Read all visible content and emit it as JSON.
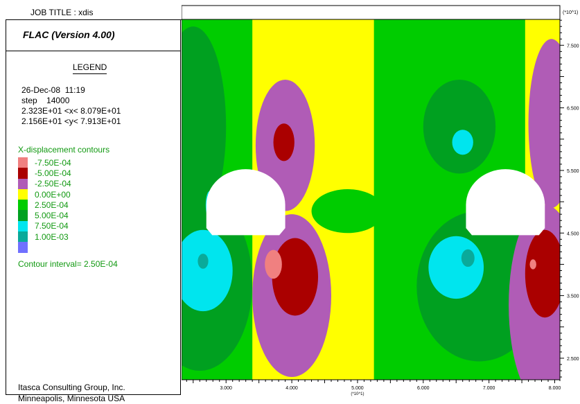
{
  "job_title": "JOB TITLE : xdis",
  "program_title": "FLAC (Version 4.00)",
  "legend_heading": "LEGEND",
  "date_line": "26-Dec-08  11:19",
  "step_line": "step    14000",
  "x_range_line": "2.323E+01 <x< 8.079E+01",
  "y_range_line": "2.156E+01 <y< 7.913E+01",
  "contour_title": "X-displacement contours",
  "contour_levels": [
    {
      "label": "-7.50E-04",
      "color": "#f08080"
    },
    {
      "label": "-5.00E-04",
      "color": "#aa0000"
    },
    {
      "label": "-2.50E-04",
      "color": "#b05cb6"
    },
    {
      "label": "0.00E+00",
      "color": "#ffff00"
    },
    {
      "label": "2.50E-04",
      "color": "#00cc00"
    },
    {
      "label": "5.00E-04",
      "color": "#00a020"
    },
    {
      "label": "7.50E-04",
      "color": "#00e5ee"
    },
    {
      "label": "1.00E-03",
      "color": "#0aaa9a"
    },
    {
      "label": "",
      "color": "#7070ff"
    }
  ],
  "contour_interval": "Contour interval=  2.50E-04",
  "company_line1": "Itasca Consulting Group, Inc.",
  "company_line2": "Minneapolis, Minnesota  USA",
  "chart_data": {
    "type": "heatmap",
    "title": "",
    "xlabel": "",
    "ylabel": "",
    "x_scale_label": "(*10^1)",
    "y_scale_label": "(*10^1)",
    "x_ticks": [
      {
        "value": 3.0,
        "label": "3.000"
      },
      {
        "value": 4.0,
        "label": "4.000"
      },
      {
        "value": 5.0,
        "label": "5.000"
      },
      {
        "value": 6.0,
        "label": "6.000"
      },
      {
        "value": 7.0,
        "label": "7.000"
      },
      {
        "value": 8.0,
        "label": "8.000"
      }
    ],
    "y_ticks": [
      {
        "value": 7.5,
        "label": "7.500"
      },
      {
        "value": 6.5,
        "label": "6.500"
      },
      {
        "value": 5.5,
        "label": "5.500"
      },
      {
        "value": 4.5,
        "label": "4.500"
      },
      {
        "value": 3.5,
        "label": "3.500"
      },
      {
        "value": 2.5,
        "label": "2.500"
      }
    ],
    "xlim": [
      2.323,
      8.079
    ],
    "ylim": [
      2.156,
      7.913
    ],
    "background_color": "#ffff00",
    "regions": [
      {
        "name": "left-green-band",
        "color": "#00cc00",
        "shape": "rect",
        "x": [
          2.323,
          3.4
        ],
        "y": [
          2.156,
          7.913
        ]
      },
      {
        "name": "right-green-band",
        "color": "#00cc00",
        "shape": "rect",
        "x": [
          5.25,
          7.55
        ],
        "y": [
          2.156,
          7.913
        ]
      },
      {
        "name": "center-green-lobe",
        "color": "#00cc00",
        "shape": "ellipse",
        "cx": 4.85,
        "cy": 4.85,
        "rx": 0.55,
        "ry": 0.35
      },
      {
        "name": "left-upper-darkgreen",
        "color": "#00a020",
        "shape": "ellipse",
        "cx": 2.5,
        "cy": 6.2,
        "rx": 0.5,
        "ry": 1.6
      },
      {
        "name": "left-lower-darkgreen",
        "color": "#00a020",
        "shape": "ellipse",
        "cx": 2.6,
        "cy": 3.7,
        "rx": 0.8,
        "ry": 1.4
      },
      {
        "name": "right-upper-darkgreen",
        "color": "#00a020",
        "shape": "ellipse",
        "cx": 6.55,
        "cy": 6.2,
        "rx": 0.55,
        "ry": 0.75
      },
      {
        "name": "right-lower-darkgreen",
        "color": "#00a020",
        "shape": "ellipse",
        "cx": 6.85,
        "cy": 3.65,
        "rx": 0.95,
        "ry": 1.2
      },
      {
        "name": "left-upper-purple",
        "color": "#b05cb6",
        "shape": "ellipse",
        "cx": 3.9,
        "cy": 5.9,
        "rx": 0.45,
        "ry": 1.05
      },
      {
        "name": "left-lower-purple",
        "color": "#b05cb6",
        "shape": "ellipse",
        "cx": 4.0,
        "cy": 3.5,
        "rx": 0.6,
        "ry": 1.3
      },
      {
        "name": "right-upper-purple",
        "color": "#b05cb6",
        "shape": "ellipse",
        "cx": 7.95,
        "cy": 6.25,
        "rx": 0.35,
        "ry": 1.35
      },
      {
        "name": "right-lower-purple",
        "color": "#b05cb6",
        "shape": "ellipse",
        "cx": 7.85,
        "cy": 3.35,
        "rx": 0.55,
        "ry": 1.6
      },
      {
        "name": "left-upper-red",
        "color": "#aa0000",
        "shape": "ellipse",
        "cx": 3.88,
        "cy": 5.95,
        "rx": 0.16,
        "ry": 0.3
      },
      {
        "name": "left-lower-red",
        "color": "#aa0000",
        "shape": "ellipse",
        "cx": 4.05,
        "cy": 3.8,
        "rx": 0.35,
        "ry": 0.62
      },
      {
        "name": "right-lower-red",
        "color": "#aa0000",
        "shape": "ellipse",
        "cx": 7.85,
        "cy": 3.85,
        "rx": 0.3,
        "ry": 0.7
      },
      {
        "name": "left-lower-pink",
        "color": "#f08080",
        "shape": "ellipse",
        "cx": 3.72,
        "cy": 4.0,
        "rx": 0.13,
        "ry": 0.23
      },
      {
        "name": "right-lower-pink",
        "color": "#f08080",
        "shape": "ellipse",
        "cx": 7.67,
        "cy": 4.0,
        "rx": 0.05,
        "ry": 0.08
      },
      {
        "name": "left-lower-cyan",
        "color": "#00e5ee",
        "shape": "ellipse",
        "cx": 2.65,
        "cy": 3.9,
        "rx": 0.45,
        "ry": 0.65
      },
      {
        "name": "right-lower-cyan",
        "color": "#00e5ee",
        "shape": "ellipse",
        "cx": 6.5,
        "cy": 3.95,
        "rx": 0.42,
        "ry": 0.5
      },
      {
        "name": "right-upper-cyan",
        "color": "#00e5ee",
        "shape": "ellipse",
        "cx": 6.6,
        "cy": 5.95,
        "rx": 0.16,
        "ry": 0.2
      },
      {
        "name": "left-side-cyan",
        "color": "#00e5ee",
        "shape": "ellipse",
        "cx": 2.75,
        "cy": 4.95,
        "rx": 0.06,
        "ry": 0.22
      },
      {
        "name": "right-side-cyan",
        "color": "#00e5ee",
        "shape": "ellipse",
        "cx": 6.82,
        "cy": 4.95,
        "rx": 0.06,
        "ry": 0.22
      },
      {
        "name": "left-lower-teal",
        "color": "#0aaa9a",
        "shape": "ellipse",
        "cx": 2.65,
        "cy": 4.05,
        "rx": 0.08,
        "ry": 0.12
      },
      {
        "name": "right-lower-teal",
        "color": "#0aaa9a",
        "shape": "ellipse",
        "cx": 6.68,
        "cy": 4.1,
        "rx": 0.1,
        "ry": 0.14
      },
      {
        "name": "left-tunnel",
        "color": "#ffffff",
        "shape": "tunnel",
        "cx": 3.3,
        "cy": 4.95,
        "rx": 0.6,
        "ry": 0.57
      },
      {
        "name": "right-tunnel",
        "color": "#ffffff",
        "shape": "tunnel",
        "cx": 7.25,
        "cy": 4.95,
        "rx": 0.6,
        "ry": 0.57
      }
    ]
  }
}
